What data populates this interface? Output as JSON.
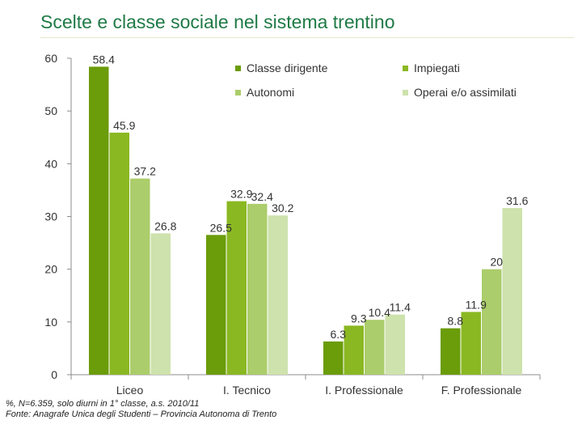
{
  "header": {
    "title": "Scelte e classe sociale nel sistema trentino"
  },
  "footnote": {
    "line1": "%, N=6.359, solo diurni in 1° classe, a.s. 2010/11",
    "line2": "Fonte: Anagrafe Unica degli Studenti – Provincia Autonoma di Trento"
  },
  "chart_data": {
    "type": "bar",
    "title": "Scelte e classe sociale nel sistema trentino",
    "xlabel": "",
    "ylabel": "",
    "ylim": [
      0,
      60
    ],
    "yticks": [
      0,
      10,
      20,
      30,
      40,
      50,
      60
    ],
    "grid": false,
    "legend_position": "top-right",
    "categories": [
      "Liceo",
      "I. Tecnico",
      "I. Professionale",
      "F. Professionale"
    ],
    "series": [
      {
        "name": "Classe dirigente",
        "color": "#6b9c0a",
        "values": [
          58.4,
          26.5,
          6.3,
          8.8
        ],
        "labels": [
          "58.4",
          "26.5",
          "6.3",
          "8.8"
        ]
      },
      {
        "name": "Impiegati",
        "color": "#8ab822",
        "values": [
          45.9,
          32.9,
          9.3,
          11.9
        ],
        "labels": [
          "45.9",
          "32.9",
          "9.3",
          "11.9"
        ]
      },
      {
        "name": "Autonomi",
        "color": "#abcd6b",
        "values": [
          37.2,
          32.4,
          10.4,
          20
        ],
        "labels": [
          "37.2",
          "32.4",
          "10.4",
          "20"
        ]
      },
      {
        "name": "Operai e/o assimilati",
        "color": "#cde2ac",
        "values": [
          26.8,
          30.2,
          11.4,
          31.6
        ],
        "labels": [
          "26.8",
          "30.2",
          "11.4",
          "31.6"
        ]
      }
    ]
  }
}
